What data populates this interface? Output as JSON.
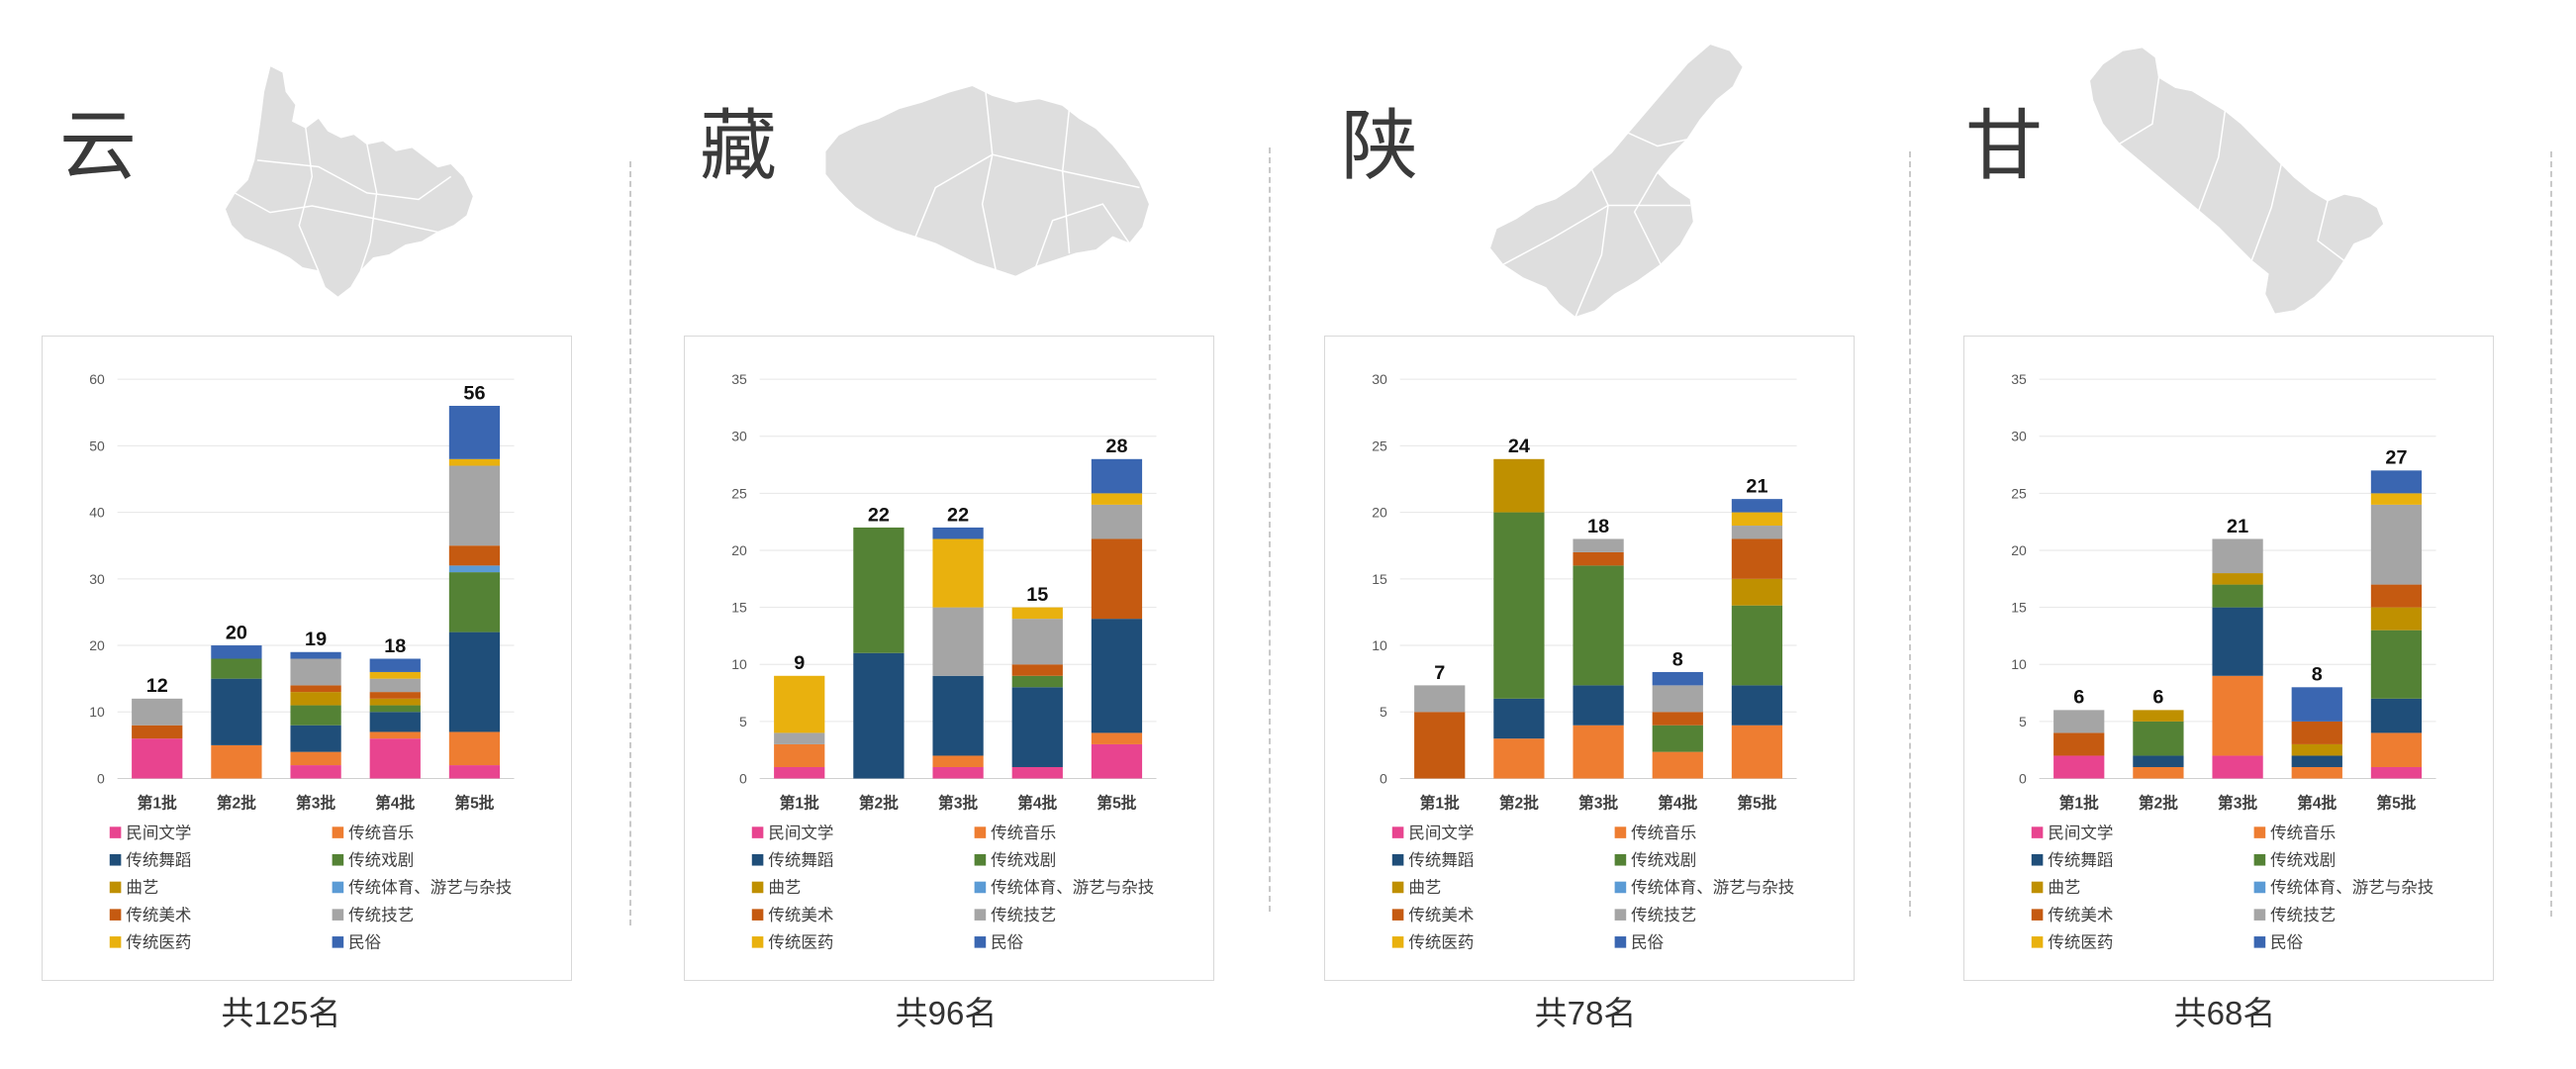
{
  "series_colors": [
    "#e8448f",
    "#ee7d31",
    "#1f4e79",
    "#548235",
    "#bf9000",
    "#5b9bd5",
    "#c55a11",
    "#a5a5a5",
    "#e9b10e",
    "#3a66b1"
  ],
  "panels": [
    {
      "province": "云",
      "total_label": "共125名",
      "map_icon": "yunnan-map-icon"
    },
    {
      "province": "藏",
      "total_label": "共96名",
      "map_icon": "tibet-map-icon"
    },
    {
      "province": "陕",
      "total_label": "共78名",
      "map_icon": "shaanxi-map-icon"
    },
    {
      "province": "甘",
      "total_label": "共68名",
      "map_icon": "gansu-map-icon"
    }
  ],
  "chart_data": [
    {
      "type": "bar",
      "stacked": true,
      "grid": true,
      "legend": "bottom",
      "categories": [
        "第1批",
        "第2批",
        "第3批",
        "第4批",
        "第5批"
      ],
      "ylim": [
        0,
        60
      ],
      "yticks": [
        0,
        10,
        20,
        30,
        40,
        50,
        60
      ],
      "totals": [
        12,
        20,
        19,
        18,
        56
      ],
      "series": [
        {
          "name": "民间文学",
          "values": [
            6,
            0,
            2,
            6,
            2
          ]
        },
        {
          "name": "传统音乐",
          "values": [
            0,
            5,
            2,
            1,
            5
          ]
        },
        {
          "name": "传统舞蹈",
          "values": [
            0,
            10,
            4,
            3,
            15
          ]
        },
        {
          "name": "传统戏剧",
          "values": [
            0,
            3,
            3,
            1,
            9
          ]
        },
        {
          "name": "曲艺",
          "values": [
            0,
            0,
            2,
            1,
            0
          ]
        },
        {
          "name": "传统体育、游艺与杂技",
          "values": [
            0,
            0,
            0,
            0,
            1
          ]
        },
        {
          "name": "传统美术",
          "values": [
            2,
            0,
            1,
            1,
            3
          ]
        },
        {
          "name": "传统技艺",
          "values": [
            4,
            0,
            4,
            2,
            12
          ]
        },
        {
          "name": "传统医药",
          "values": [
            0,
            0,
            0,
            1,
            1
          ]
        },
        {
          "name": "民俗",
          "values": [
            0,
            2,
            1,
            2,
            8
          ]
        }
      ]
    },
    {
      "type": "bar",
      "stacked": true,
      "grid": true,
      "legend": "bottom",
      "categories": [
        "第1批",
        "第2批",
        "第3批",
        "第4批",
        "第5批"
      ],
      "ylim": [
        0,
        35
      ],
      "yticks": [
        0,
        5,
        10,
        15,
        20,
        25,
        30,
        35
      ],
      "totals": [
        9,
        22,
        22,
        15,
        28
      ],
      "series": [
        {
          "name": "民间文学",
          "values": [
            1,
            0,
            1,
            1,
            3
          ]
        },
        {
          "name": "传统音乐",
          "values": [
            2,
            0,
            1,
            0,
            1
          ]
        },
        {
          "name": "传统舞蹈",
          "values": [
            0,
            11,
            7,
            7,
            10
          ]
        },
        {
          "name": "传统戏剧",
          "values": [
            0,
            11,
            0,
            1,
            0
          ]
        },
        {
          "name": "曲艺",
          "values": [
            0,
            0,
            0,
            0,
            0
          ]
        },
        {
          "name": "传统体育、游艺与杂技",
          "values": [
            0,
            0,
            0,
            0,
            0
          ]
        },
        {
          "name": "传统美术",
          "values": [
            0,
            0,
            0,
            1,
            7
          ]
        },
        {
          "name": "传统技艺",
          "values": [
            1,
            0,
            6,
            4,
            3
          ]
        },
        {
          "name": "传统医药",
          "values": [
            5,
            0,
            6,
            1,
            1
          ]
        },
        {
          "name": "民俗",
          "values": [
            0,
            0,
            1,
            0,
            3
          ]
        }
      ]
    },
    {
      "type": "bar",
      "stacked": true,
      "grid": true,
      "legend": "bottom",
      "categories": [
        "第1批",
        "第2批",
        "第3批",
        "第4批",
        "第5批"
      ],
      "ylim": [
        0,
        30
      ],
      "yticks": [
        0,
        5,
        10,
        15,
        20,
        25,
        30
      ],
      "totals": [
        7,
        24,
        18,
        8,
        21
      ],
      "series": [
        {
          "name": "民间文学",
          "values": [
            0,
            0,
            0,
            0,
            0
          ]
        },
        {
          "name": "传统音乐",
          "values": [
            0,
            3,
            4,
            2,
            4
          ]
        },
        {
          "name": "传统舞蹈",
          "values": [
            0,
            3,
            3,
            0,
            3
          ]
        },
        {
          "name": "传统戏剧",
          "values": [
            0,
            14,
            9,
            2,
            6
          ]
        },
        {
          "name": "曲艺",
          "values": [
            0,
            4,
            0,
            0,
            2
          ]
        },
        {
          "name": "传统体育、游艺与杂技",
          "values": [
            0,
            0,
            0,
            0,
            0
          ]
        },
        {
          "name": "传统美术",
          "values": [
            5,
            0,
            1,
            1,
            3
          ]
        },
        {
          "name": "传统技艺",
          "values": [
            2,
            0,
            1,
            2,
            1
          ]
        },
        {
          "name": "传统医药",
          "values": [
            0,
            0,
            0,
            0,
            1
          ]
        },
        {
          "name": "民俗",
          "values": [
            0,
            0,
            0,
            1,
            1
          ]
        }
      ]
    },
    {
      "type": "bar",
      "stacked": true,
      "grid": true,
      "legend": "bottom",
      "categories": [
        "第1批",
        "第2批",
        "第3批",
        "第4批",
        "第5批"
      ],
      "ylim": [
        0,
        35
      ],
      "yticks": [
        0,
        5,
        10,
        15,
        20,
        25,
        30,
        35
      ],
      "totals": [
        6,
        6,
        21,
        8,
        27
      ],
      "series": [
        {
          "name": "民间文学",
          "values": [
            2,
            0,
            2,
            0,
            1
          ]
        },
        {
          "name": "传统音乐",
          "values": [
            0,
            1,
            7,
            1,
            3
          ]
        },
        {
          "name": "传统舞蹈",
          "values": [
            0,
            1,
            6,
            1,
            3
          ]
        },
        {
          "name": "传统戏剧",
          "values": [
            0,
            3,
            2,
            0,
            6
          ]
        },
        {
          "name": "曲艺",
          "values": [
            0,
            1,
            1,
            1,
            2
          ]
        },
        {
          "name": "传统体育、游艺与杂技",
          "values": [
            0,
            0,
            0,
            0,
            0
          ]
        },
        {
          "name": "传统美术",
          "values": [
            2,
            0,
            0,
            2,
            2
          ]
        },
        {
          "name": "传统技艺",
          "values": [
            2,
            0,
            3,
            0,
            7
          ]
        },
        {
          "name": "传统医药",
          "values": [
            0,
            0,
            0,
            0,
            1
          ]
        },
        {
          "name": "民俗",
          "values": [
            0,
            0,
            0,
            3,
            2
          ]
        }
      ]
    }
  ]
}
